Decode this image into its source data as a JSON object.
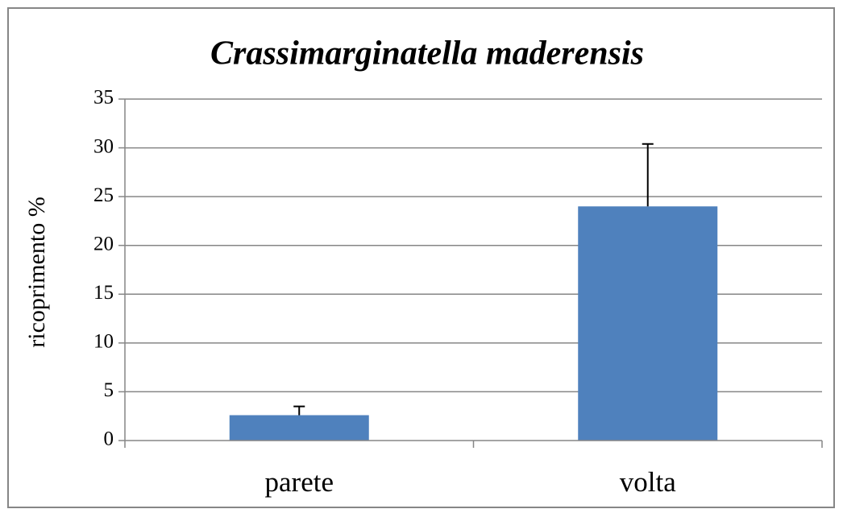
{
  "chart_data": {
    "type": "bar",
    "title": "Crassimarginatella maderensis",
    "y_label": "ricoprimento %",
    "categories": [
      "parete",
      "volta"
    ],
    "values": [
      2.6,
      24
    ],
    "errors": [
      0.9,
      6.4
    ],
    "color": "#4f81bd",
    "ylim": [
      0,
      35
    ],
    "yticks": [
      0,
      5,
      10,
      15,
      20,
      25,
      30,
      35
    ],
    "grid": true
  }
}
